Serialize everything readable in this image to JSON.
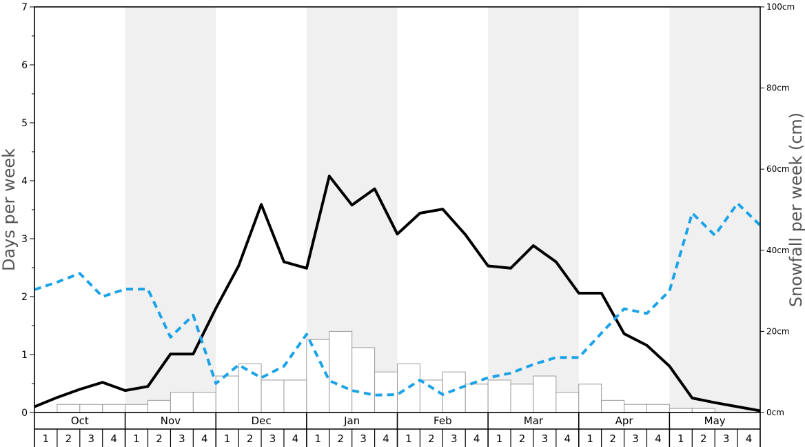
{
  "chart_data": {
    "type": "bar",
    "y_left": {
      "label": "Days per week",
      "ticks": [
        "0",
        "1",
        "2",
        "3",
        "4",
        "5",
        "6",
        "7"
      ],
      "range": [
        0,
        7
      ]
    },
    "y_right": {
      "label": "Snowfall per week (cm)",
      "ticks": [
        "0cm",
        "20cm",
        "40cm",
        "60cm",
        "80cm",
        "100cm"
      ],
      "range": [
        0,
        100
      ]
    },
    "months": [
      "Oct",
      "Nov",
      "Dec",
      "Jan",
      "Feb",
      "Mar",
      "Apr",
      "May"
    ],
    "weeks": [
      "1",
      "2",
      "3",
      "4"
    ],
    "shaded_months": [
      "Nov",
      "Jan",
      "Mar",
      "May"
    ],
    "grid": false,
    "series": [
      {
        "kind": "bar",
        "axis": "right",
        "values": [
          0,
          2,
          2,
          2,
          2,
          3,
          5,
          5,
          9,
          12,
          8,
          8,
          18,
          20,
          16,
          10,
          12,
          8,
          10,
          7,
          8,
          7,
          9,
          5,
          7,
          3,
          2,
          2,
          1,
          1,
          0,
          0
        ],
        "fill": "#ffffff",
        "stroke": "#999999"
      },
      {
        "kind": "line",
        "axis": "left",
        "values": [
          0.1,
          0.26,
          0.4,
          0.52,
          0.38,
          0.45,
          1.01,
          1.01,
          1.8,
          2.53,
          3.59,
          2.6,
          2.49,
          4.08,
          3.58,
          3.86,
          3.08,
          3.44,
          3.51,
          3.07,
          2.53,
          2.49,
          2.88,
          2.6,
          2.06,
          2.06,
          1.36,
          1.16,
          0.8,
          0.25,
          0.17,
          0.1,
          0.03
        ],
        "color": "#000000",
        "style": "solid"
      },
      {
        "kind": "line",
        "axis": "left",
        "values": [
          2.12,
          2.25,
          2.4,
          2.0,
          2.13,
          2.13,
          1.3,
          1.68,
          0.5,
          0.82,
          0.6,
          0.8,
          1.35,
          0.55,
          0.38,
          0.3,
          0.31,
          0.56,
          0.31,
          0.46,
          0.6,
          0.68,
          0.83,
          0.95,
          0.95,
          1.37,
          1.79,
          1.71,
          2.1,
          3.44,
          3.06,
          3.61,
          3.23
        ],
        "color": "#1aa3e8",
        "style": "dashed"
      }
    ]
  }
}
